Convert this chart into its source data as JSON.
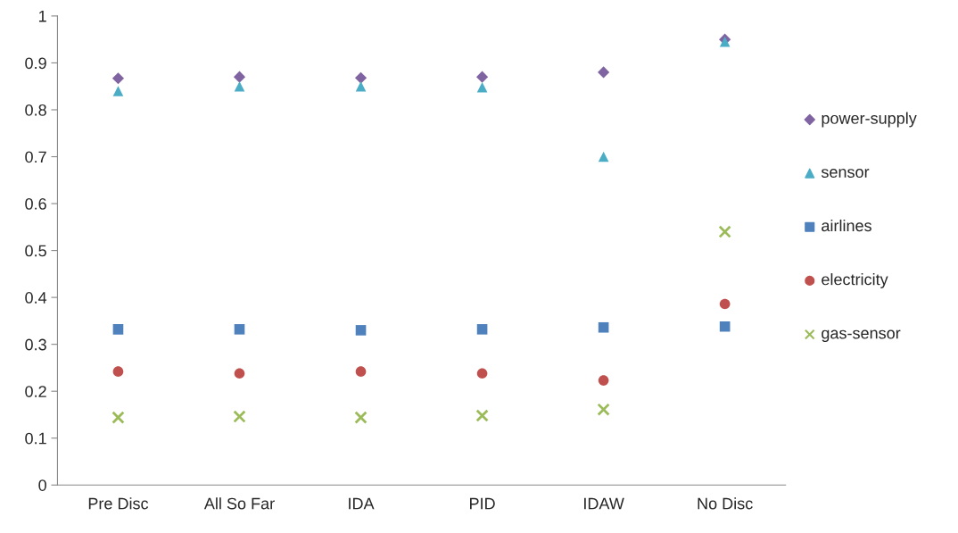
{
  "chart_data": {
    "type": "scatter",
    "categories": [
      "Pre Disc",
      "All So Far",
      "IDA",
      "PID",
      "IDAW",
      "No Disc"
    ],
    "series": [
      {
        "name": "power-supply",
        "color": "#8064a2",
        "marker": "diamond",
        "values": [
          0.867,
          0.87,
          0.868,
          0.87,
          0.88,
          0.95
        ]
      },
      {
        "name": "sensor",
        "color": "#4bacc6",
        "marker": "triangle",
        "values": [
          0.84,
          0.85,
          0.85,
          0.848,
          0.7,
          0.945
        ]
      },
      {
        "name": "airlines",
        "color": "#4f81bd",
        "marker": "square",
        "values": [
          0.332,
          0.332,
          0.33,
          0.332,
          0.336,
          0.338
        ]
      },
      {
        "name": "electricity",
        "color": "#c0504d",
        "marker": "circle",
        "values": [
          0.242,
          0.238,
          0.242,
          0.238,
          0.223,
          0.386
        ]
      },
      {
        "name": "gas-sensor",
        "color": "#9bbb59",
        "marker": "cross",
        "values": [
          0.144,
          0.146,
          0.144,
          0.148,
          0.161,
          0.54
        ]
      }
    ],
    "ylim": [
      0,
      1
    ],
    "yticks": [
      0,
      0.1,
      0.2,
      0.3,
      0.4,
      0.5,
      0.6,
      0.7,
      0.8,
      0.9,
      1
    ],
    "grid": false,
    "legend": "right"
  }
}
